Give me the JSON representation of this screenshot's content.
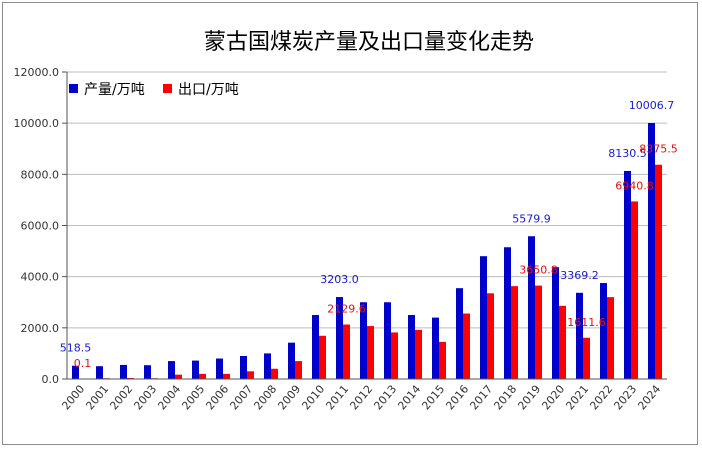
{
  "chart_data": {
    "type": "bar",
    "title": "蒙古国煤炭产量及出口量变化走势",
    "xlabel": "",
    "ylabel": "",
    "ylim": [
      0,
      12000
    ],
    "yticks": [
      "0.0",
      "2000.0",
      "4000.0",
      "6000.0",
      "8000.0",
      "10000.0",
      "12000.0"
    ],
    "grid": true,
    "legend_position": "top-left",
    "categories": [
      "2000",
      "2001",
      "2002",
      "2003",
      "2004",
      "2005",
      "2006",
      "2007",
      "2008",
      "2009",
      "2010",
      "2011",
      "2012",
      "2013",
      "2014",
      "2015",
      "2016",
      "2017",
      "2018",
      "2019",
      "2020",
      "2021",
      "2022",
      "2023",
      "2024"
    ],
    "series": [
      {
        "name": "产量/万吨",
        "color": "#0000cc",
        "values": [
          518.5,
          500,
          550,
          540,
          700,
          720,
          800,
          900,
          1000,
          1420,
          2500,
          3203.0,
          3000,
          3000,
          2500,
          2400,
          3550,
          4800,
          5150,
          5579.9,
          4370,
          3369.2,
          3750,
          8130.5,
          10006.7
        ]
      },
      {
        "name": "出口/万吨",
        "color": "#ff0000",
        "values": [
          0.1,
          30,
          40,
          30,
          170,
          200,
          200,
          300,
          400,
          700,
          1690,
          2129.6,
          2070,
          1820,
          1920,
          1450,
          2560,
          3350,
          3630,
          3650.8,
          2860,
          1611.6,
          3200,
          6940.8,
          8375.5
        ]
      }
    ],
    "annotations": {
      "production": [
        {
          "index": 0,
          "text": "518.5"
        },
        {
          "index": 11,
          "text": "3203.0"
        },
        {
          "index": 19,
          "text": "5579.9"
        },
        {
          "index": 21,
          "text": "3369.2"
        },
        {
          "index": 23,
          "text": "8130.5"
        },
        {
          "index": 24,
          "text": "10006.7"
        }
      ],
      "export": [
        {
          "index": 0,
          "text": "0.1"
        },
        {
          "index": 11,
          "text": "2129.6"
        },
        {
          "index": 19,
          "text": "3650.8"
        },
        {
          "index": 21,
          "text": "1611.6"
        },
        {
          "index": 23,
          "text": "6940.8"
        },
        {
          "index": 24,
          "text": "8375.5"
        }
      ]
    }
  }
}
